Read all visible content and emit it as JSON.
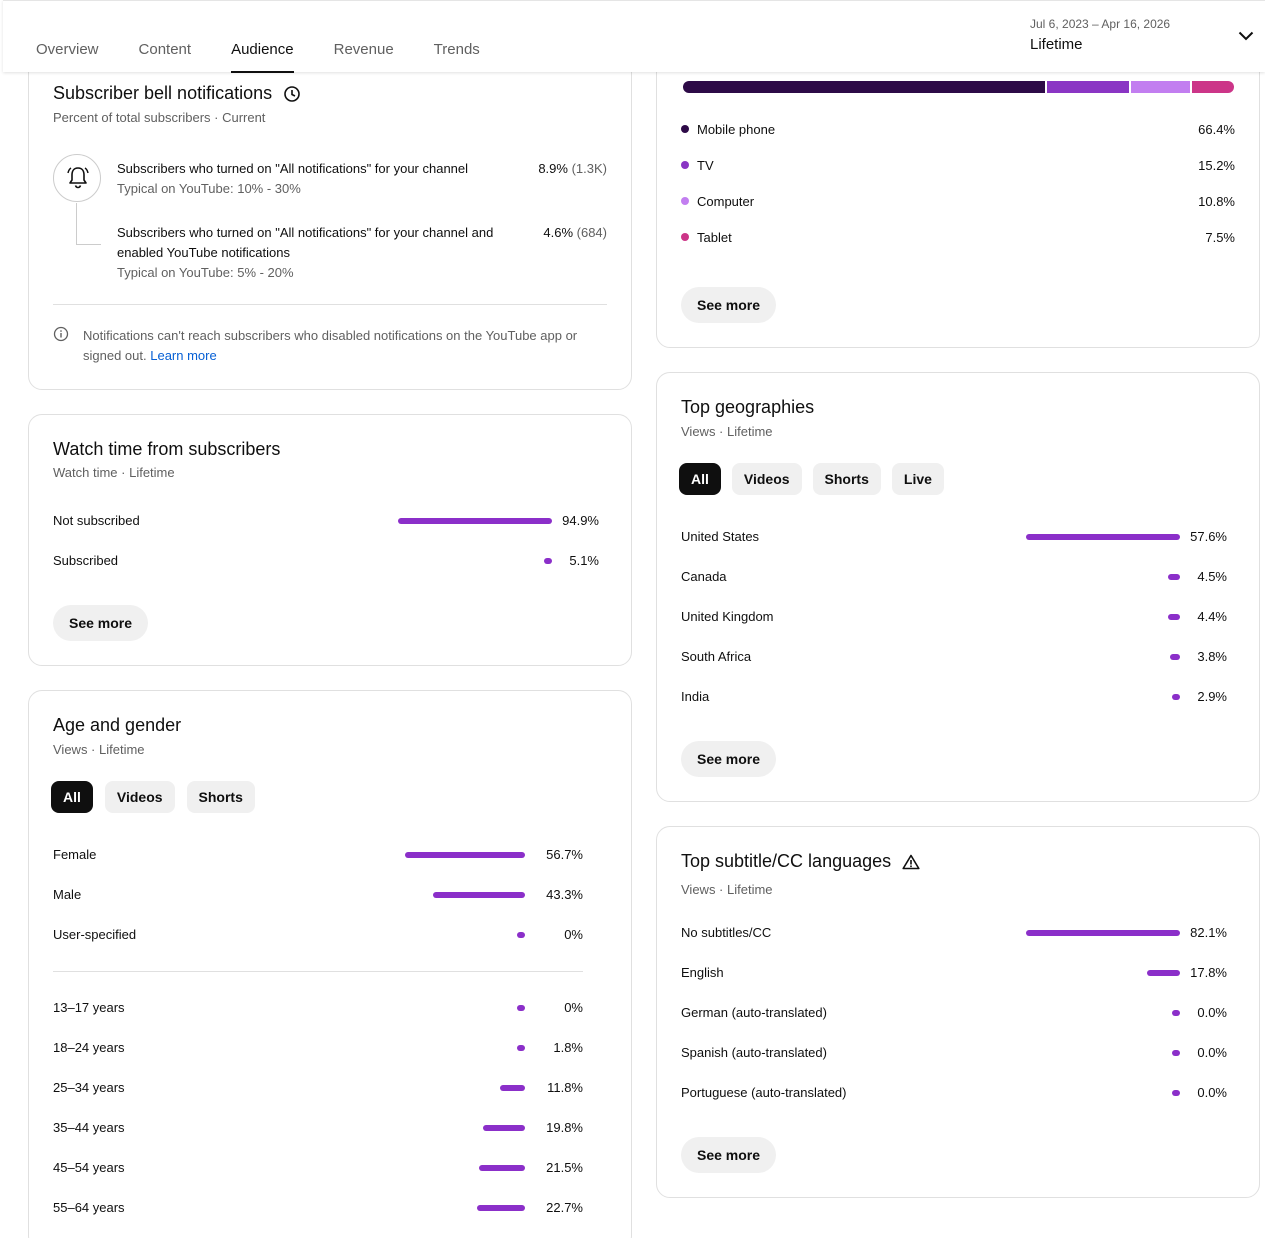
{
  "header": {
    "tabs": [
      {
        "label": "Overview"
      },
      {
        "label": "Content"
      },
      {
        "label": "Audience",
        "active": true
      },
      {
        "label": "Revenue"
      },
      {
        "label": "Trends"
      }
    ],
    "date_range": {
      "dates": "Jul 6, 2023 – Apr 16, 2026",
      "label": "Lifetime"
    }
  },
  "bell": {
    "title": "Subscriber bell notifications",
    "subtitle": "Percent of total subscribers · Current",
    "row1": {
      "text": "Subscribers who turned on \"All notifications\" for your channel",
      "typical": "Typical on YouTube: 10% - 30%",
      "value": "8.9%",
      "count": "(1.3K)"
    },
    "row2": {
      "text": "Subscribers who turned on \"All notifications\" for your channel and enabled YouTube notifications",
      "typical": "Typical on YouTube: 5% - 20%",
      "value": "4.6%",
      "count": "(684)"
    },
    "note": "Notifications can't reach subscribers who disabled notifications on the YouTube app or signed out.",
    "learn_more": "Learn more"
  },
  "watch_time": {
    "title": "Watch time from subscribers",
    "subtitle": "Watch time · Lifetime",
    "rows": [
      {
        "label": "Not subscribed",
        "value": "94.9%"
      },
      {
        "label": "Subscribed",
        "value": "5.1%"
      }
    ],
    "see_more": "See more"
  },
  "age_gender": {
    "title": "Age and gender",
    "subtitle": "Views · Lifetime",
    "filters": [
      "All",
      "Videos",
      "Shorts"
    ],
    "gender_rows": [
      {
        "label": "Female",
        "value": "56.7%"
      },
      {
        "label": "Male",
        "value": "43.3%"
      },
      {
        "label": "User-specified",
        "value": "0%"
      }
    ],
    "age_rows": [
      {
        "label": "13–17 years",
        "value": "0%"
      },
      {
        "label": "18–24 years",
        "value": "1.8%"
      },
      {
        "label": "25–34 years",
        "value": "11.8%"
      },
      {
        "label": "35–44 years",
        "value": "19.8%"
      },
      {
        "label": "45–54 years",
        "value": "21.5%"
      },
      {
        "label": "55–64 years",
        "value": "22.7%"
      }
    ]
  },
  "devices": {
    "colors": {
      "mobile": "#2d0a47",
      "tv": "#8a35c4",
      "computer": "#c27ef0",
      "tablet": "#cc3588"
    },
    "rows": [
      {
        "label": "Mobile phone",
        "value": "66.4%"
      },
      {
        "label": "TV",
        "value": "15.2%"
      },
      {
        "label": "Computer",
        "value": "10.8%"
      },
      {
        "label": "Tablet",
        "value": "7.5%"
      }
    ],
    "see_more": "See more"
  },
  "geographies": {
    "title": "Top geographies",
    "subtitle": "Views · Lifetime",
    "filters": [
      "All",
      "Videos",
      "Shorts",
      "Live"
    ],
    "rows": [
      {
        "label": "United States",
        "value": "57.6%"
      },
      {
        "label": "Canada",
        "value": "4.5%"
      },
      {
        "label": "United Kingdom",
        "value": "4.4%"
      },
      {
        "label": "South Africa",
        "value": "3.8%"
      },
      {
        "label": "India",
        "value": "2.9%"
      }
    ],
    "see_more": "See more"
  },
  "subtitles": {
    "title": "Top subtitle/CC languages",
    "subtitle": "Views · Lifetime",
    "rows": [
      {
        "label": "No subtitles/CC",
        "value": "82.1%"
      },
      {
        "label": "English",
        "value": "17.8%"
      },
      {
        "label": "German (auto-translated)",
        "value": "0.0%"
      },
      {
        "label": "Spanish (auto-translated)",
        "value": "0.0%"
      },
      {
        "label": "Portuguese (auto-translated)",
        "value": "0.0%"
      }
    ],
    "see_more": "See more"
  }
}
